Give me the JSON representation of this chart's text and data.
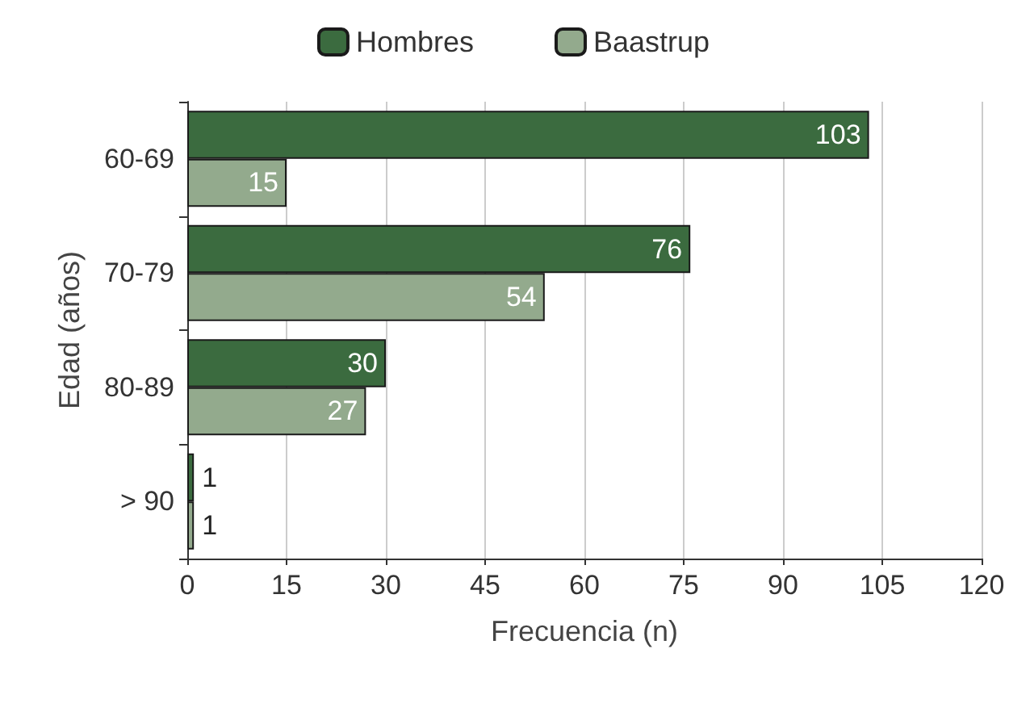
{
  "chart_data": {
    "type": "bar",
    "orientation": "horizontal",
    "xlabel": "Frecuencia (n)",
    "ylabel": "Edad (años)",
    "categories": [
      "60-69",
      "70-79",
      "80-89",
      "> 90"
    ],
    "series": [
      {
        "name": "Hombres",
        "color": "#3b6b3f",
        "values": [
          103,
          76,
          30,
          1
        ]
      },
      {
        "name": "Baastrup",
        "color": "#93aa8d",
        "values": [
          15,
          54,
          27,
          1
        ]
      }
    ],
    "xlim": [
      0,
      120
    ],
    "xticks": [
      0,
      15,
      30,
      45,
      60,
      75,
      90,
      105,
      120
    ],
    "grid": "x",
    "legend": "top",
    "data_labels": true
  }
}
